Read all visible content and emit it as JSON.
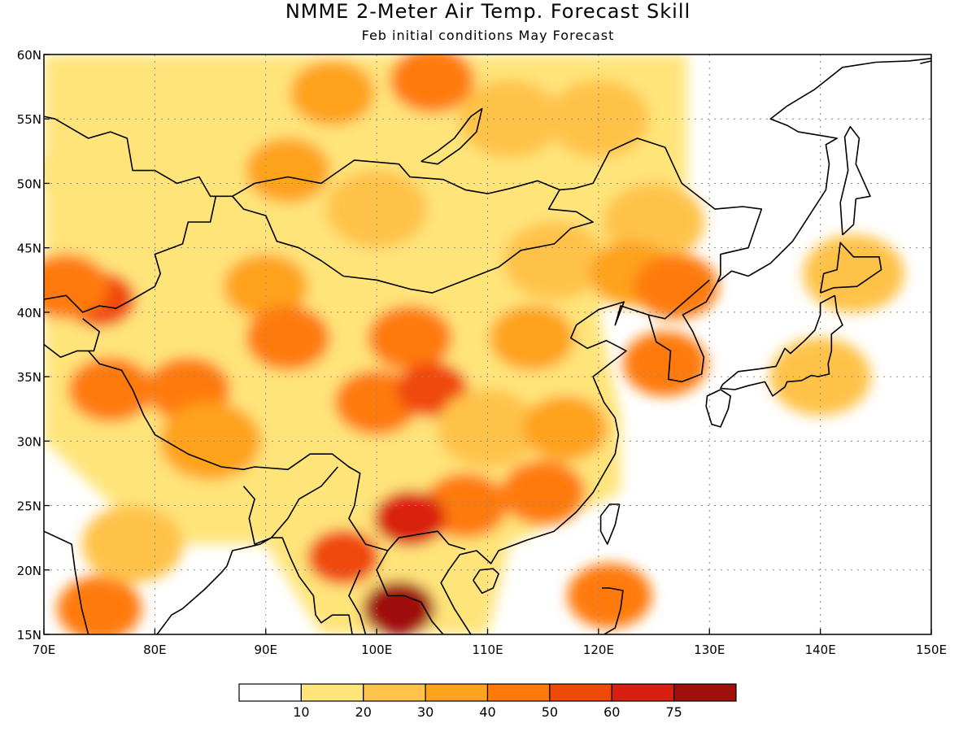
{
  "header": {
    "title": "NMME 2-Meter Air Temp. Forecast Skill",
    "subtitle": "Feb initial conditions  May Forecast"
  },
  "chart_data": {
    "type": "heatmap",
    "title": "NMME 2-Meter Air Temp. Forecast Skill",
    "subtitle": "Feb initial conditions  May Forecast",
    "xlim": [
      70,
      150
    ],
    "ylim": [
      15,
      60
    ],
    "x_ticks": [
      "70E",
      "80E",
      "90E",
      "100E",
      "110E",
      "120E",
      "130E",
      "140E",
      "150E"
    ],
    "y_ticks": [
      "15N",
      "20N",
      "25N",
      "30N",
      "35N",
      "40N",
      "45N",
      "50N",
      "55N",
      "60N"
    ],
    "grid": true,
    "colorbar": {
      "levels": [
        0,
        10,
        20,
        30,
        40,
        50,
        60,
        75,
        100
      ],
      "labels": [
        "10",
        "20",
        "30",
        "40",
        "50",
        "60",
        "75"
      ],
      "colors": [
        "#ffffff",
        "#ffe47a",
        "#ffc24a",
        "#ffa21e",
        "#ff7a0a",
        "#f04a0a",
        "#d92010",
        "#a00f0a"
      ]
    },
    "skill_regions": [
      {
        "lon": 96,
        "lat": 57,
        "value": 35
      },
      {
        "lon": 105,
        "lat": 58,
        "value": 45
      },
      {
        "lon": 112,
        "lat": 55,
        "value": 25
      },
      {
        "lon": 120,
        "lat": 55,
        "value": 20
      },
      {
        "lon": 80,
        "lat": 55,
        "value": 15
      },
      {
        "lon": 92,
        "lat": 51,
        "value": 35
      },
      {
        "lon": 74,
        "lat": 51,
        "value": 12
      },
      {
        "lon": 100,
        "lat": 48,
        "value": 25
      },
      {
        "lon": 125,
        "lat": 47,
        "value": 22
      },
      {
        "lon": 116,
        "lat": 44,
        "value": 25
      },
      {
        "lon": 123,
        "lat": 43,
        "value": 35
      },
      {
        "lon": 127,
        "lat": 42,
        "value": 45
      },
      {
        "lon": 75,
        "lat": 41,
        "value": 55
      },
      {
        "lon": 72,
        "lat": 42,
        "value": 45
      },
      {
        "lon": 90,
        "lat": 42,
        "value": 35
      },
      {
        "lon": 92,
        "lat": 38,
        "value": 40
      },
      {
        "lon": 103,
        "lat": 38,
        "value": 45
      },
      {
        "lon": 114,
        "lat": 38,
        "value": 35
      },
      {
        "lon": 83,
        "lat": 34,
        "value": 45
      },
      {
        "lon": 76,
        "lat": 34,
        "value": 45
      },
      {
        "lon": 85,
        "lat": 30,
        "value": 30
      },
      {
        "lon": 100,
        "lat": 33,
        "value": 45
      },
      {
        "lon": 105,
        "lat": 34,
        "value": 50
      },
      {
        "lon": 110,
        "lat": 31,
        "value": 25
      },
      {
        "lon": 117,
        "lat": 31,
        "value": 35
      },
      {
        "lon": 115,
        "lat": 26,
        "value": 45
      },
      {
        "lon": 108,
        "lat": 25,
        "value": 40
      },
      {
        "lon": 103,
        "lat": 24,
        "value": 60
      },
      {
        "lon": 97,
        "lat": 21,
        "value": 50
      },
      {
        "lon": 102,
        "lat": 17,
        "value": 75
      },
      {
        "lon": 75,
        "lat": 17,
        "value": 45
      },
      {
        "lon": 78,
        "lat": 22,
        "value": 20
      },
      {
        "lon": 126,
        "lat": 36,
        "value": 45
      },
      {
        "lon": 140,
        "lat": 35,
        "value": 25
      },
      {
        "lon": 143,
        "lat": 43,
        "value": 25
      },
      {
        "lon": 121,
        "lat": 18,
        "value": 40
      }
    ]
  }
}
